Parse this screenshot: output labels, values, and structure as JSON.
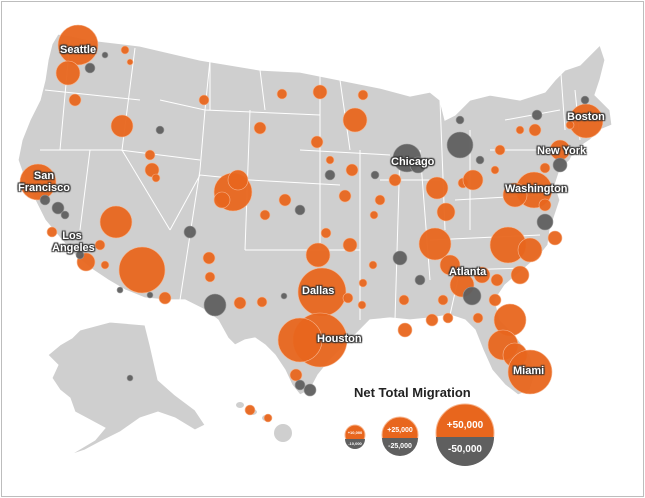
{
  "map": {
    "title": "Net Total Migration",
    "colors": {
      "land": "#cfcfcf",
      "border": "#ffffff",
      "positive": "#e8661d",
      "negative": "#5f5f5f",
      "bubble_stroke": "#f7b58e"
    }
  },
  "cities": {
    "seattle": "Seattle",
    "san_francisco": "San Francisco",
    "los_angeles": "Los Angeles",
    "dallas": "Dallas",
    "houston": "Houston",
    "chicago": "Chicago",
    "atlanta": "Atlanta",
    "miami": "Miami",
    "washington": "Washington",
    "new_york": "New York",
    "boston": "Boston"
  },
  "legend": {
    "small_pos": "+10,000",
    "small_neg": "-10,000",
    "mid_pos": "+25,000",
    "mid_neg": "-25,000",
    "large_pos": "+50,000",
    "large_neg": "-50,000"
  }
}
